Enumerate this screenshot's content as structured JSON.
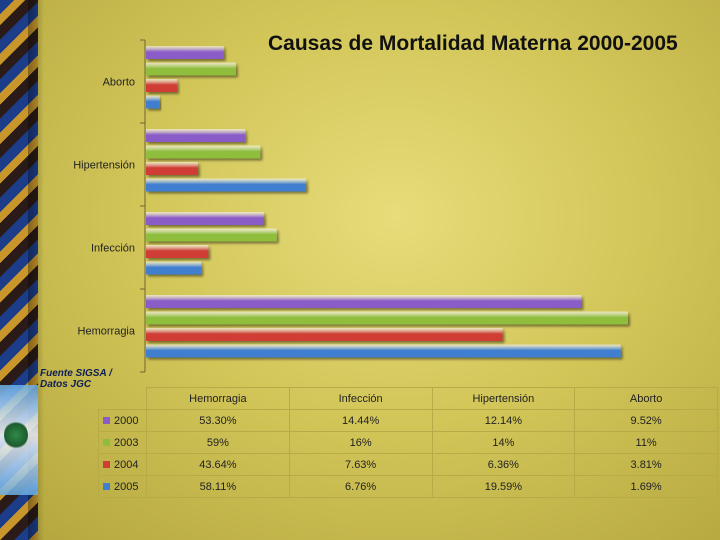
{
  "title": "Causas de Mortalidad Materna 2000-2005",
  "source": "Fuente SIGSA / Datos JGC",
  "chart_data": {
    "type": "bar",
    "orientation": "horizontal",
    "title": "Causas de Mortalidad Materna 2000-2005",
    "categories": [
      "Hemorragia",
      "Infección",
      "Hipertensión",
      "Aborto"
    ],
    "series": [
      {
        "name": "2000",
        "color": "#8a5cc7",
        "values": [
          53.3,
          14.44,
          12.14,
          9.52
        ],
        "labels": [
          "53.30%",
          "14.44%",
          "12.14%",
          "9.52%"
        ]
      },
      {
        "name": "2003",
        "color": "#8fbe3e",
        "values": [
          59,
          16,
          14,
          11
        ],
        "labels": [
          "59%",
          "16%",
          "14%",
          "11%"
        ]
      },
      {
        "name": "2004",
        "color": "#cf3d35",
        "values": [
          43.64,
          7.63,
          6.36,
          3.81
        ],
        "labels": [
          "43.64%",
          "7.63%",
          "6.36%",
          "3.81%"
        ]
      },
      {
        "name": "2005",
        "color": "#3f7fcf",
        "values": [
          58.11,
          6.76,
          19.59,
          1.69
        ],
        "labels": [
          "58.11%",
          "6.76%",
          "19.59%",
          "1.69%"
        ]
      }
    ],
    "xlim": [
      0,
      70
    ],
    "grid": false,
    "legend": "data-table"
  }
}
